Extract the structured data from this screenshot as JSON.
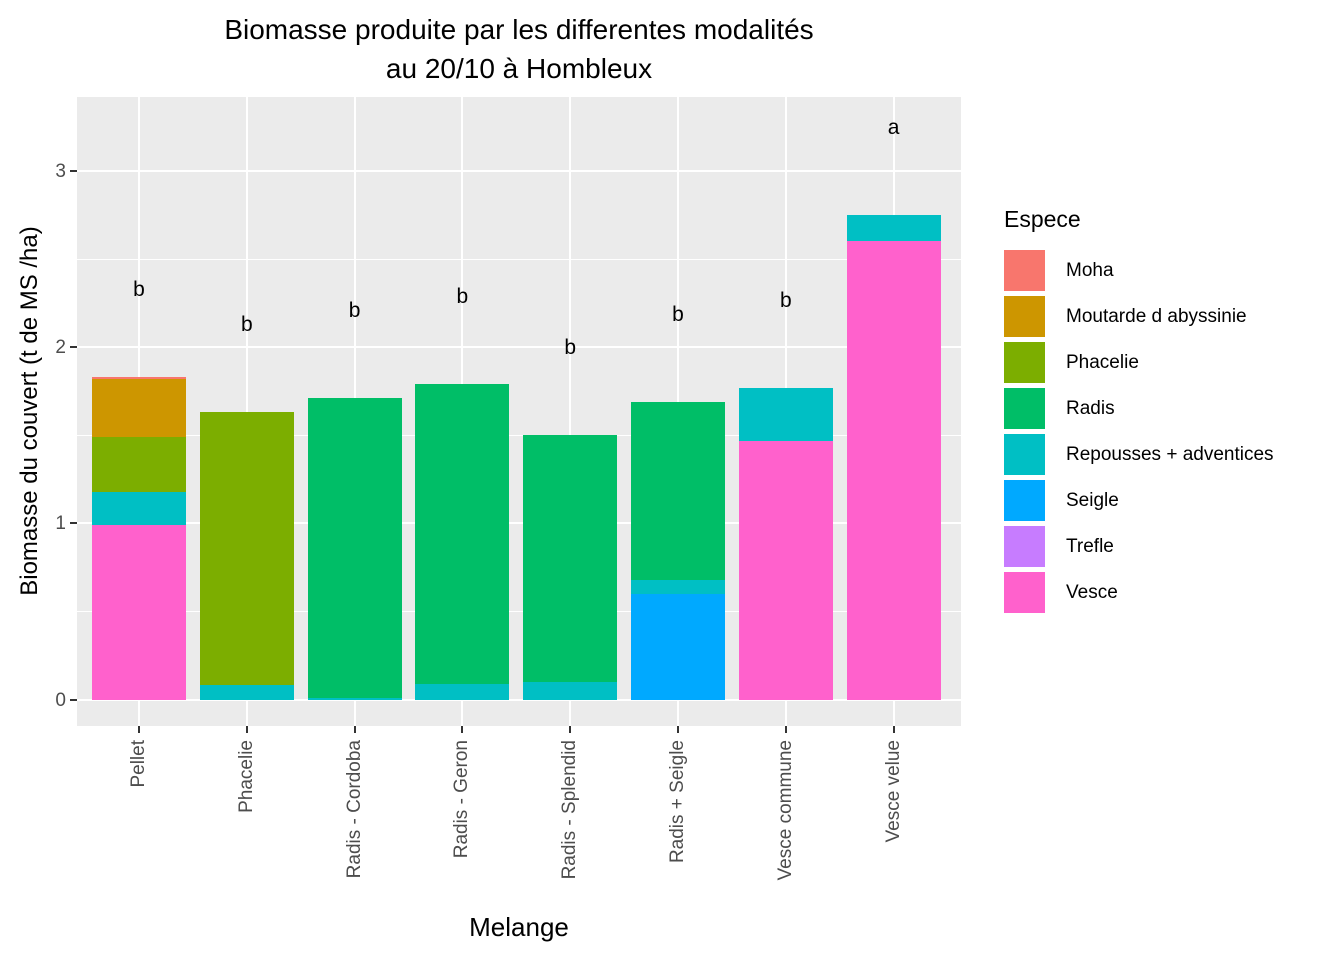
{
  "title": {
    "line1": "Biomasse produite par les differentes modalités",
    "line2": "au 20/10 à Hombleux"
  },
  "x_axis": {
    "title": "Melange"
  },
  "y_axis": {
    "title": "Biomasse du couvert (t de MS /ha)"
  },
  "legend": {
    "title": "Espece",
    "items": [
      {
        "label": "Moha",
        "color": "#F8766D"
      },
      {
        "label": "Moutarde d abyssinie",
        "color": "#CD9600"
      },
      {
        "label": "Phacelie",
        "color": "#7CAE00"
      },
      {
        "label": "Radis",
        "color": "#00BE67"
      },
      {
        "label": "Repousses + adventices",
        "color": "#00BFC4"
      },
      {
        "label": "Seigle",
        "color": "#00A9FF"
      },
      {
        "label": "Trefle",
        "color": "#C77CFF"
      },
      {
        "label": "Vesce",
        "color": "#FF61CC"
      }
    ]
  },
  "chart_data": {
    "type": "bar",
    "stacked": true,
    "title": "Biomasse produite par les differentes modalités au 20/10 à Hombleux",
    "xlabel": "Melange",
    "ylabel": "Biomasse du couvert (t de MS /ha)",
    "legend_title": "Espece",
    "legend_position": "right",
    "grid": true,
    "panel_bg": "#EBEBEB",
    "grid_color": "#FFFFFF",
    "axis_text_color": "#4D4D4D",
    "ylim": [
      -0.15,
      3.42
    ],
    "yticks": [
      0,
      1,
      2,
      3
    ],
    "yticks_minor": [
      0.5,
      1.5,
      2.5
    ],
    "categories": [
      "Pellet",
      "Phacelie",
      "Radis - Cordoba",
      "Radis - Geron",
      "Radis - Splendid",
      "Radis + Seigle",
      "Vesce commune",
      "Vesce velue"
    ],
    "series": [
      {
        "name": "Moha",
        "color": "#F8766D",
        "values": [
          0.01,
          0,
          0,
          0,
          0,
          0,
          0,
          0
        ]
      },
      {
        "name": "Moutarde d abyssinie",
        "color": "#CD9600",
        "values": [
          0.33,
          0,
          0,
          0,
          0,
          0,
          0,
          0
        ]
      },
      {
        "name": "Phacelie",
        "color": "#7CAE00",
        "values": [
          0.31,
          1.55,
          0,
          0,
          0,
          0,
          0,
          0
        ]
      },
      {
        "name": "Radis",
        "color": "#00BE67",
        "values": [
          0,
          0,
          1.7,
          1.7,
          1.4,
          1.01,
          0,
          0
        ]
      },
      {
        "name": "Repousses + adventices",
        "color": "#00BFC4",
        "values": [
          0.19,
          0.08,
          0.01,
          0.09,
          0.1,
          0.08,
          0.3,
          0.15
        ]
      },
      {
        "name": "Seigle",
        "color": "#00A9FF",
        "values": [
          0,
          0,
          0,
          0,
          0,
          0.6,
          0,
          0
        ]
      },
      {
        "name": "Trefle",
        "color": "#C77CFF",
        "values": [
          0,
          0,
          0,
          0,
          0,
          0,
          0,
          0
        ]
      },
      {
        "name": "Vesce",
        "color": "#FF61CC",
        "values": [
          0.99,
          0,
          0,
          0,
          0,
          0,
          1.47,
          2.6
        ]
      }
    ],
    "bar_totals": [
      1.83,
      1.63,
      1.71,
      1.79,
      1.5,
      1.69,
      1.77,
      2.75
    ],
    "significance_letters": [
      "b",
      "b",
      "b",
      "b",
      "b",
      "b",
      "b",
      "a"
    ],
    "letter_offset": 0.5
  }
}
